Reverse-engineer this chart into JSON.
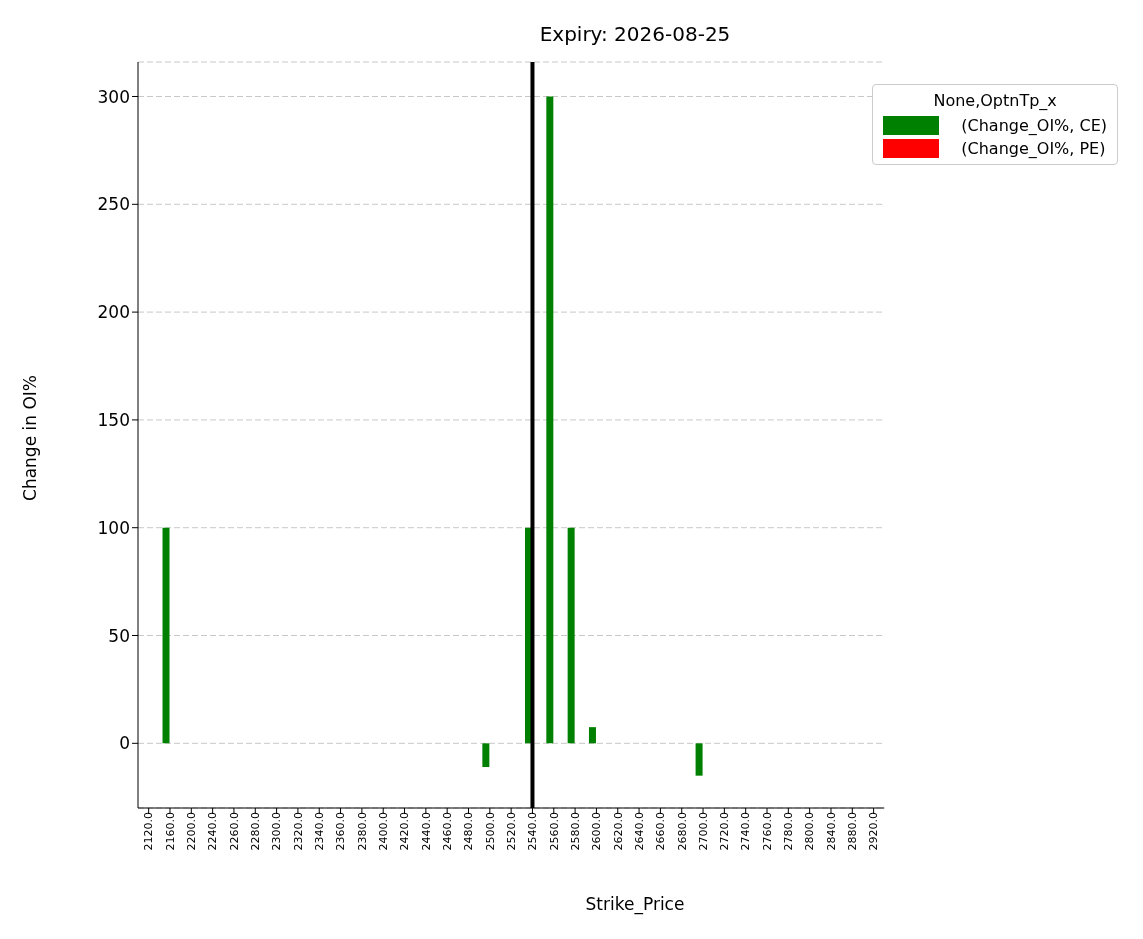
{
  "chart_data": {
    "type": "bar",
    "title": "Expiry: 2026-08-25",
    "xlabel": "Strike_Price",
    "ylabel": "Change in OI%",
    "legend_title": "None,OptnTp_x",
    "categories": [
      "2120.0",
      "2160.0",
      "2200.0",
      "2240.0",
      "2260.0",
      "2280.0",
      "2300.0",
      "2320.0",
      "2340.0",
      "2360.0",
      "2380.0",
      "2400.0",
      "2420.0",
      "2440.0",
      "2460.0",
      "2480.0",
      "2500.0",
      "2520.0",
      "2540.0",
      "2560.0",
      "2580.0",
      "2600.0",
      "2620.0",
      "2640.0",
      "2660.0",
      "2680.0",
      "2700.0",
      "2720.0",
      "2740.0",
      "2760.0",
      "2780.0",
      "2800.0",
      "2840.0",
      "2880.0",
      "2920.0"
    ],
    "series": [
      {
        "name": "(Change_OI%, CE)",
        "color": "#008000",
        "values": [
          null,
          100,
          null,
          null,
          null,
          null,
          null,
          null,
          null,
          null,
          null,
          null,
          null,
          null,
          null,
          null,
          -11,
          null,
          100,
          300,
          100,
          7.5,
          null,
          null,
          null,
          null,
          -15,
          null,
          null,
          null,
          null,
          null,
          null,
          null,
          null
        ]
      },
      {
        "name": "(Change_OI%, PE)",
        "color": "#ff0000",
        "values": [
          null,
          null,
          null,
          null,
          null,
          null,
          null,
          null,
          null,
          null,
          null,
          null,
          null,
          null,
          null,
          null,
          null,
          null,
          null,
          null,
          null,
          null,
          null,
          null,
          null,
          null,
          null,
          null,
          null,
          null,
          null,
          null,
          null,
          null,
          null
        ]
      }
    ],
    "ylim": [
      -30,
      316
    ],
    "yticks": [
      0,
      50,
      100,
      150,
      200,
      250,
      300
    ],
    "grid": "y",
    "legend": "top right",
    "ref_lines": [
      {
        "axis": "x",
        "value": "2540.0",
        "color": "#000000",
        "line_style": "solid"
      }
    ]
  }
}
